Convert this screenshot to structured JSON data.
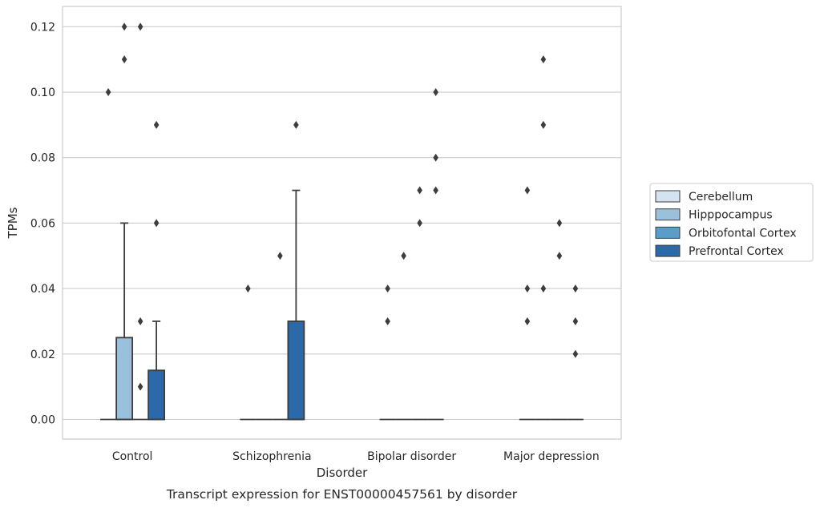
{
  "chart_data": {
    "type": "box",
    "title": "",
    "caption": "Transcript expression for ENST00000457561 by disorder",
    "xlabel": "Disorder",
    "ylabel": "TPMs",
    "ylim": [
      -0.006,
      0.1262
    ],
    "yticks": [
      "0.00",
      "0.02",
      "0.04",
      "0.06",
      "0.08",
      "0.10",
      "0.12"
    ],
    "grid": "horizontal",
    "legend_position": "right",
    "categories": [
      "Control",
      "Schizophrenia",
      "Bipolar disorder",
      "Major depression"
    ],
    "series": [
      {
        "name": "Cerebellum",
        "color": "#d4e3ef",
        "boxes": [
          {
            "q1": 0,
            "median": 0,
            "q3": 0,
            "whisker_low": 0,
            "whisker_high": 0,
            "outliers": [
              0.1
            ]
          },
          {
            "q1": 0,
            "median": 0,
            "q3": 0,
            "whisker_low": 0,
            "whisker_high": 0,
            "outliers": [
              0.04
            ]
          },
          {
            "q1": 0,
            "median": 0,
            "q3": 0,
            "whisker_low": 0,
            "whisker_high": 0,
            "outliers": [
              0.03,
              0.04
            ]
          },
          {
            "q1": 0,
            "median": 0,
            "q3": 0,
            "whisker_low": 0,
            "whisker_high": 0,
            "outliers": [
              0.03,
              0.04,
              0.07
            ]
          }
        ]
      },
      {
        "name": "Hipppocampus",
        "color": "#9ac0db",
        "boxes": [
          {
            "q1": 0,
            "median": 0,
            "q3": 0.025,
            "whisker_low": 0,
            "whisker_high": 0.06,
            "outliers": [
              0.11,
              0.12
            ]
          },
          {
            "q1": 0,
            "median": 0,
            "q3": 0,
            "whisker_low": 0,
            "whisker_high": 0,
            "outliers": []
          },
          {
            "q1": 0,
            "median": 0,
            "q3": 0,
            "whisker_low": 0,
            "whisker_high": 0,
            "outliers": [
              0.05
            ]
          },
          {
            "q1": 0,
            "median": 0,
            "q3": 0,
            "whisker_low": 0,
            "whisker_high": 0,
            "outliers": [
              0.04,
              0.09,
              0.11
            ]
          }
        ]
      },
      {
        "name": "Orbitofontal Cortex",
        "color": "#5a9dc8",
        "boxes": [
          {
            "q1": 0,
            "median": 0,
            "q3": 0,
            "whisker_low": 0,
            "whisker_high": 0,
            "outliers": [
              0.01,
              0.03,
              0.12
            ]
          },
          {
            "q1": 0,
            "median": 0,
            "q3": 0,
            "whisker_low": 0,
            "whisker_high": 0,
            "outliers": [
              0.05
            ]
          },
          {
            "q1": 0,
            "median": 0,
            "q3": 0,
            "whisker_low": 0,
            "whisker_high": 0,
            "outliers": [
              0.06,
              0.07
            ]
          },
          {
            "q1": 0,
            "median": 0,
            "q3": 0,
            "whisker_low": 0,
            "whisker_high": 0,
            "outliers": [
              0.05,
              0.06
            ]
          }
        ]
      },
      {
        "name": "Prefrontal Cortex",
        "color": "#2b69a8",
        "boxes": [
          {
            "q1": 0,
            "median": 0,
            "q3": 0.015,
            "whisker_low": 0,
            "whisker_high": 0.03,
            "outliers": [
              0.06,
              0.09
            ]
          },
          {
            "q1": 0,
            "median": 0,
            "q3": 0.03,
            "whisker_low": 0,
            "whisker_high": 0.07,
            "outliers": [
              0.09
            ]
          },
          {
            "q1": 0,
            "median": 0,
            "q3": 0,
            "whisker_low": 0,
            "whisker_high": 0,
            "outliers": [
              0.07,
              0.08,
              0.1
            ]
          },
          {
            "q1": 0,
            "median": 0,
            "q3": 0,
            "whisker_low": 0,
            "whisker_high": 0,
            "outliers": [
              0.02,
              0.03,
              0.04
            ]
          }
        ]
      }
    ]
  }
}
